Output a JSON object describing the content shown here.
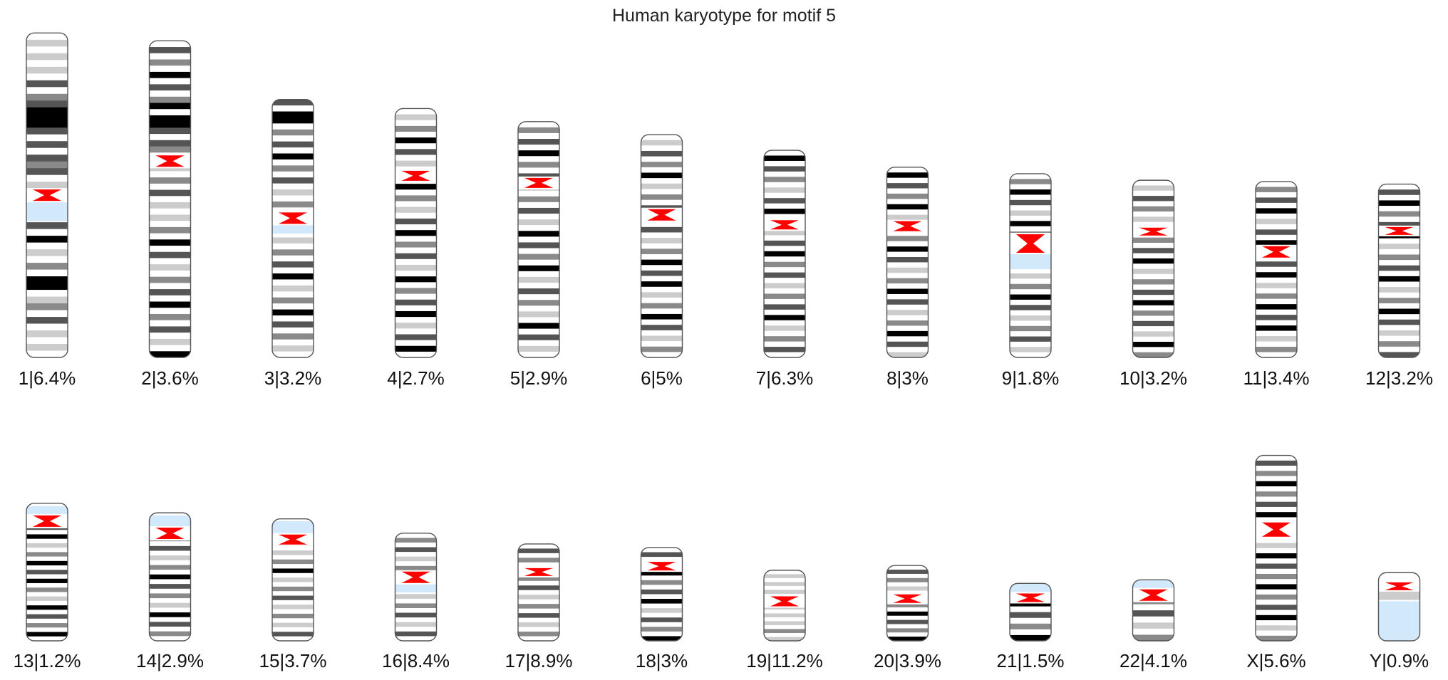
{
  "title": "Human karyotype for motif 5",
  "colors": {
    "band_black": "#000000",
    "band_dark_gray": "#555555",
    "band_gray": "#8a8a8a",
    "band_light_gray": "#cccccc",
    "band_white": "#ffffff",
    "centromere": "#ff0000",
    "stalk": "#d2e8fb",
    "outline": "#555555"
  },
  "chromosomes": [
    {
      "id": "1",
      "label": "1|6.4%",
      "percent": 6.4,
      "length": 249,
      "centromere": 0.5,
      "stalk": [
        0.51,
        0.58
      ],
      "cen_size": 1.0,
      "bands": "wlwlwlwdwgdkkkdwdwdgdwlwlwlwdwkwlwgwkkwlgwdwlwlw"
    },
    {
      "id": "2",
      "label": "2|3.6%",
      "percent": 3.6,
      "length": 243,
      "centromere": 0.38,
      "stalk": null,
      "cen_size": 1.0,
      "bands": "wdwgwkwdwgkwkkdwdgwwlwgwdwlwlwgwkwdwlwgwdwkwgwdwlwk"
    },
    {
      "id": "3",
      "label": "3|3.2%",
      "percent": 3.2,
      "length": 198,
      "centromere": 0.46,
      "stalk": [
        0.47,
        0.52
      ],
      "cen_size": 1.0,
      "bands": "dwkkwgwdwkwgwdwlwgwdwlwlwgwdwkwlwgwkwdwgwlw"
    },
    {
      "id": "4",
      "label": "4|2.7%",
      "percent": 2.7,
      "length": 191,
      "centromere": 0.27,
      "stalk": null,
      "cen_size": 0.8,
      "bands": "wlwgwkwdwlwdwkwgwlwdwkwgwdwlwkwgwdwkwlwdwkw"
    },
    {
      "id": "5",
      "label": "5|2.9%",
      "percent": 2.9,
      "length": 181,
      "centromere": 0.26,
      "stalk": null,
      "cen_size": 0.8,
      "bands": "wgwdwkwgwdwlwgwdwlwkwdwgwkwlwdwgwlwkwdwlw"
    },
    {
      "id": "6",
      "label": "6|5%",
      "percent": 5.0,
      "length": 171,
      "centromere": 0.36,
      "stalk": null,
      "cen_size": 1.0,
      "bands": "wlwdwgwkwlwgwdwkwdwlwgwkwdwkwlwgwkwdwlwgw"
    },
    {
      "id": "7",
      "label": "7|6.3%",
      "percent": 6.3,
      "length": 159,
      "centromere": 0.36,
      "stalk": null,
      "cen_size": 0.7,
      "bands": "wkwdwgwlwdwkwgwlwdwkwgwdwlwgwdwkwlwgwdw"
    },
    {
      "id": "8",
      "label": "8|3%",
      "percent": 3.0,
      "length": 146,
      "centromere": 0.31,
      "stalk": null,
      "cen_size": 0.8,
      "bands": "wkwdwgwkwlwdwgwkwdwlwgwkwdwlwgwkwdwl"
    },
    {
      "id": "9",
      "label": "9|1.8%",
      "percent": 1.8,
      "length": 141,
      "centromere": 0.38,
      "stalk": [
        0.43,
        0.52
      ],
      "cen_size": 2.0,
      "bands": "wgwkwdwlwkwgwlwgwdwlwgwkwdwlwgwdwlw"
    },
    {
      "id": "10",
      "label": "10|3.2%",
      "percent": 3.2,
      "length": 136,
      "centromere": 0.29,
      "stalk": null,
      "cen_size": 0.5,
      "bands": "wlwdwgwlwkwgwdwkwlwgwdwkwgwdwlwkwg"
    },
    {
      "id": "11",
      "label": "11|3.4%",
      "percent": 3.4,
      "length": 135,
      "centromere": 0.4,
      "stalk": null,
      "cen_size": 1.0,
      "bands": "wgwdwkwlwdwkwgwdwkwlwgwkwdwkwlwgw"
    },
    {
      "id": "12",
      "label": "12|3.2%",
      "percent": 3.2,
      "length": 133,
      "centromere": 0.27,
      "stalk": null,
      "cen_size": 0.5,
      "bands": "wdwkwgwdwkwlwgwdwkwlwgwkwdwlwgwd"
    },
    {
      "id": "13",
      "label": "13|1.2%",
      "percent": 1.2,
      "length": 115,
      "centromere": 0.13,
      "stalk": [
        0.02,
        0.16
      ],
      "cen_size": 1.0,
      "bands": "wlwgwdwkwlwgwkwdwkwgwlwkwdwgwkw"
    },
    {
      "id": "14",
      "label": "14|2.9%",
      "percent": 2.9,
      "length": 107,
      "centromere": 0.16,
      "stalk": [
        0.02,
        0.14
      ],
      "cen_size": 1.0,
      "bands": "wdwkwgwdwlwgwkwdwgwlwkwdwgw"
    },
    {
      "id": "15",
      "label": "15|3.7%",
      "percent": 3.7,
      "length": 102,
      "centromere": 0.17,
      "stalk": [
        0.02,
        0.15
      ],
      "cen_size": 0.8,
      "bands": "wlwgwdwlwgwkwlwgwdwlwgwlwdw"
    },
    {
      "id": "16",
      "label": "16|8.4%",
      "percent": 8.4,
      "length": 90,
      "centromere": 0.41,
      "stalk": [
        0.44,
        0.55
      ],
      "cen_size": 1.0,
      "bands": "wgwdwlwgwkwkwlwgwdwlwdw"
    },
    {
      "id": "17",
      "label": "17|8.9%",
      "percent": 8.9,
      "length": 81,
      "centromere": 0.29,
      "stalk": null,
      "cen_size": 0.5,
      "bands": "wdwgwlwgwdwlwgwdwlwgw"
    },
    {
      "id": "18",
      "label": "18|3%",
      "percent": 3.0,
      "length": 78,
      "centromere": 0.2,
      "stalk": null,
      "cen_size": 0.6,
      "bands": "wdwlwkwgwdwkwlwdwgwk"
    },
    {
      "id": "19",
      "label": "19|11.2%",
      "percent": 11.2,
      "length": 59,
      "centromere": 0.44,
      "stalk": [
        0.36,
        0.52
      ],
      "cen_size": 0.8,
      "bands": "wlwlwlwgwlwlwlwgwl"
    },
    {
      "id": "20",
      "label": "20|3.9%",
      "percent": 3.9,
      "length": 63,
      "centromere": 0.44,
      "stalk": null,
      "cen_size": 0.6,
      "bands": "wdwgwlwdwgwkwdwgwk"
    },
    {
      "id": "21",
      "label": "21|1.5%",
      "percent": 1.5,
      "length": 48,
      "centromere": 0.25,
      "stalk": [
        0.0,
        0.22
      ],
      "cen_size": 0.6,
      "bands": "wkwkwdwgwk"
    },
    {
      "id": "22",
      "label": "22|4.1%",
      "percent": 4.1,
      "length": 51,
      "centromere": 0.25,
      "stalk": [
        0.0,
        0.2
      ],
      "cen_size": 1.0,
      "bands": "wlwgwdwlwg"
    },
    {
      "id": "X",
      "label": "X|5.6%",
      "percent": 5.6,
      "length": 155,
      "centromere": 0.4,
      "stalk": null,
      "cen_size": 1.4,
      "bands": "wdwgwkwgwdwkwdwgwlwkwdwgwkwgwdwkwlwg"
    },
    {
      "id": "Y",
      "label": "Y|0.9%",
      "percent": 0.9,
      "length": 57,
      "centromere": 0.2,
      "stalk": [
        0.42,
        1.0
      ],
      "cen_size": 0.5,
      "bands": "wlwdw"
    }
  ]
}
